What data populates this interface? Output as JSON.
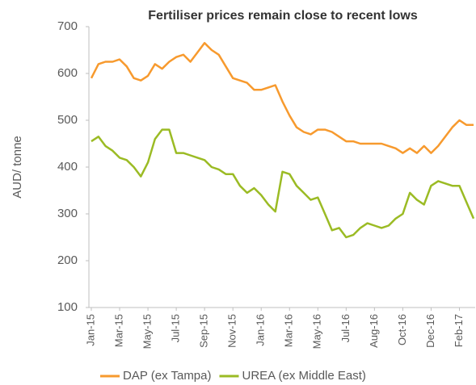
{
  "chart_data": {
    "type": "line",
    "title": "Fertiliser prices remain close to recent lows",
    "y_label": "AUD/ tonne",
    "categories": [
      "Jan-15",
      null,
      null,
      null,
      "Mar-15",
      null,
      null,
      null,
      "May-15",
      null,
      null,
      null,
      "Jul-15",
      null,
      null,
      null,
      "Sep-15",
      null,
      null,
      null,
      "Nov-15",
      null,
      null,
      null,
      "Jan-16",
      null,
      null,
      null,
      "Mar-16",
      null,
      null,
      null,
      "May-16",
      null,
      null,
      null,
      "Jul-16",
      null,
      null,
      null,
      "Aug-16",
      null,
      null,
      null,
      "Oct-16",
      null,
      null,
      null,
      "Dec-16",
      null,
      null,
      null,
      "Feb-17",
      null,
      null
    ],
    "series": [
      {
        "name": "DAP (ex Tampa)",
        "color": "#f79a2e",
        "values": [
          590,
          620,
          625,
          625,
          630,
          615,
          590,
          585,
          595,
          620,
          610,
          625,
          635,
          640,
          625,
          645,
          665,
          650,
          640,
          615,
          590,
          585,
          580,
          565,
          565,
          570,
          575,
          540,
          510,
          485,
          475,
          470,
          480,
          480,
          475,
          465,
          455,
          455,
          450,
          450,
          450,
          450,
          445,
          440,
          430,
          440,
          430,
          445,
          430,
          445,
          465,
          485,
          500,
          490,
          490
        ]
      },
      {
        "name": "UREA (ex Middle East)",
        "color": "#9bbb24",
        "values": [
          455,
          465,
          445,
          435,
          420,
          415,
          400,
          380,
          410,
          460,
          480,
          480,
          430,
          430,
          425,
          420,
          415,
          400,
          395,
          385,
          385,
          360,
          345,
          355,
          340,
          320,
          305,
          390,
          385,
          360,
          345,
          330,
          335,
          300,
          265,
          270,
          250,
          255,
          270,
          280,
          275,
          270,
          275,
          290,
          300,
          345,
          330,
          320,
          360,
          370,
          365,
          360,
          360,
          325,
          290
        ]
      }
    ],
    "ylim": [
      100,
      700
    ],
    "yticks": [
      100,
      200,
      300,
      400,
      500,
      600,
      700
    ],
    "legend": "bottom"
  }
}
